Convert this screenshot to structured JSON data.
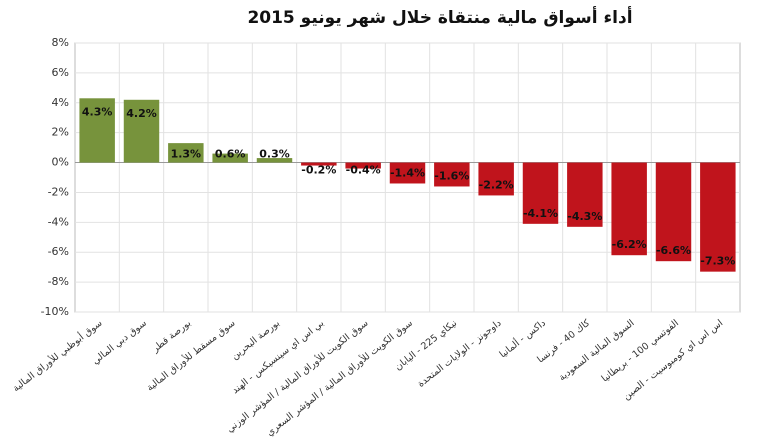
{
  "chart_data": {
    "type": "bar",
    "title": "أداء أسواق مالية منتقاة خلال شهر يونيو 2015",
    "categories": [
      "سوق أبوظبي للأوراق المالية",
      "سوق دبي المالي",
      "بورصة قطر",
      "سوق مسقط للأوراق المالية",
      "بورصة البحرين",
      "بي اس اي سينسيكس - الهند",
      "سوق الكويت للأوراق المالية / المؤشر الوزني",
      "سوق الكويت للأوراق المالية / المؤشر السعري",
      "نيكاي 225 - اليابان",
      "داوجونز - الولايات المتحدة",
      "داكس - ألمانيا",
      "كاك 40 - فرنسا",
      "السوق المالية السعودية",
      "الفوتسي 100 - بريطانيا",
      "اس اس اي كومبوسيت - الصين"
    ],
    "values": [
      4.3,
      4.2,
      1.3,
      0.6,
      0.3,
      -0.2,
      -0.4,
      -1.4,
      -1.6,
      -2.2,
      -4.1,
      -4.3,
      -6.2,
      -6.6,
      -7.3
    ],
    "value_labels": [
      "4.3%",
      "4.2%",
      "1.3%",
      "0.6%",
      "0.3%",
      "-0.2%",
      "-0.4%",
      "-1.4%",
      "-1.6%",
      "-2.2%",
      "-4.1%",
      "-4.3%",
      "-6.2%",
      "-6.6%",
      "-7.3%"
    ],
    "colors": {
      "positive": "#77933c",
      "negative": "#c0141c"
    },
    "ylim": [
      -10,
      8
    ],
    "yticks": [
      {
        "value": -10,
        "label": "-10%"
      },
      {
        "value": -8,
        "label": "-8%"
      },
      {
        "value": -6,
        "label": "-6%"
      },
      {
        "value": -4,
        "label": "-4%"
      },
      {
        "value": -2,
        "label": "-2%"
      },
      {
        "value": 0,
        "label": "0%"
      },
      {
        "value": 2,
        "label": "2%"
      },
      {
        "value": 4,
        "label": "4%"
      },
      {
        "value": 6,
        "label": "6%"
      },
      {
        "value": 8,
        "label": "8%"
      }
    ],
    "grid": true
  }
}
